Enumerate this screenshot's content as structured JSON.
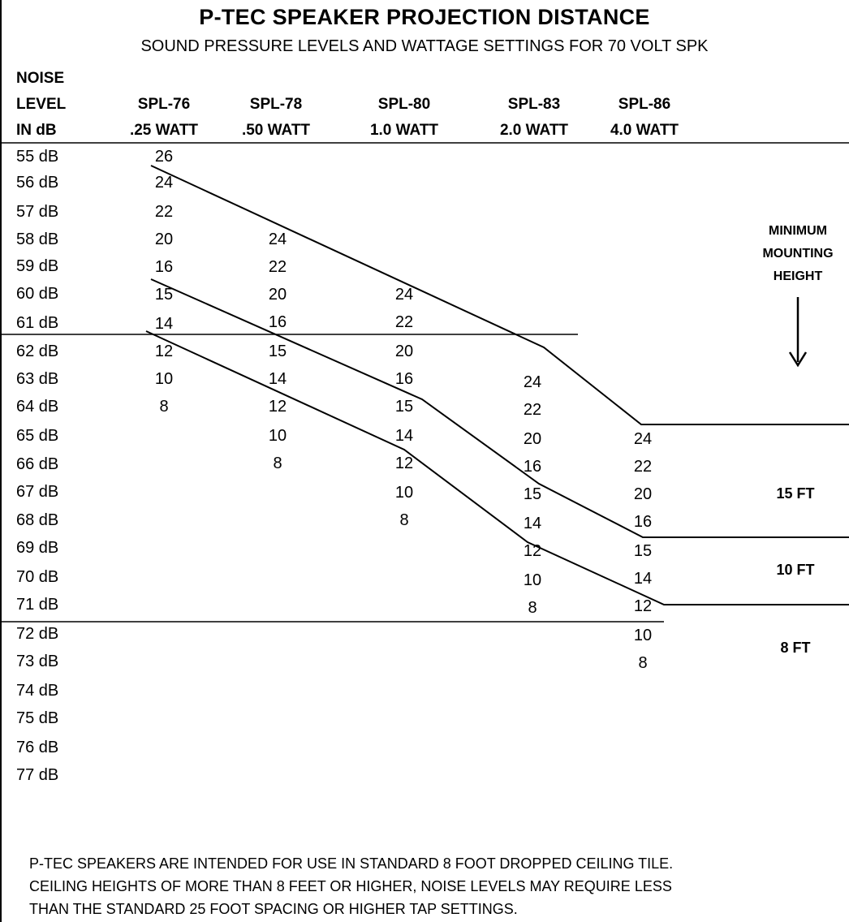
{
  "title": "P-TEC SPEAKER PROJECTION DISTANCE",
  "subtitle": "SOUND PRESSURE LEVELS AND WATTAGE SETTINGS FOR 70 VOLT SPK",
  "header": {
    "noise_col": [
      "NOISE",
      "LEVEL",
      "IN dB"
    ],
    "columns": [
      {
        "spl": "SPL-76",
        "watt": ".25 WATT"
      },
      {
        "spl": "SPL-78",
        "watt": ".50 WATT"
      },
      {
        "spl": "SPL-80",
        "watt": "1.0 WATT"
      },
      {
        "spl": "SPL-83",
        "watt": "2.0 WATT"
      },
      {
        "spl": "SPL-86",
        "watt": "4.0 WATT"
      }
    ]
  },
  "noise_levels": [
    "55 dB",
    "56 dB",
    "57 dB",
    "58 dB",
    "59 dB",
    "60 dB",
    "61 dB",
    "62 dB",
    "63 dB",
    "64 dB",
    "65 dB",
    "66 dB",
    "67 dB",
    "68 dB",
    "69 dB",
    "70 dB",
    "71 dB",
    "72 dB",
    "73 dB",
    "74 dB",
    "75 dB",
    "76 dB",
    "77 dB"
  ],
  "values": {
    "spl76": [
      "26",
      "24",
      "22",
      "20",
      "16",
      "15",
      "14",
      "12",
      "10",
      "8"
    ],
    "spl78": [
      "24",
      "22",
      "20",
      "16",
      "15",
      "14",
      "12",
      "10",
      "8"
    ],
    "spl80": [
      "24",
      "22",
      "20",
      "16",
      "15",
      "14",
      "12",
      "10",
      "8"
    ],
    "spl83": [
      "24",
      "22",
      "20",
      "16",
      "15",
      "14",
      "12",
      "10",
      "8"
    ],
    "spl86": [
      "24",
      "22",
      "20",
      "16",
      "15",
      "14",
      "12",
      "10",
      "8"
    ]
  },
  "side_labels": {
    "minimum": "MINIMUM",
    "mounting": "MOUNTING",
    "height": "HEIGHT",
    "ft15": "15 FT",
    "ft10": "10 FT",
    "ft8": "8 FT"
  },
  "footnote": [
    "P-TEC SPEAKERS ARE INTENDED FOR USE IN STANDARD 8 FOOT DROPPED CEILING TILE.",
    "CEILING HEIGHTS OF MORE THAN 8 FEET OR HIGHER, NOISE LEVELS MAY REQUIRE LESS",
    "THAN THE STANDARD 25 FOOT SPACING OR HIGHER TAP SETTINGS."
  ]
}
